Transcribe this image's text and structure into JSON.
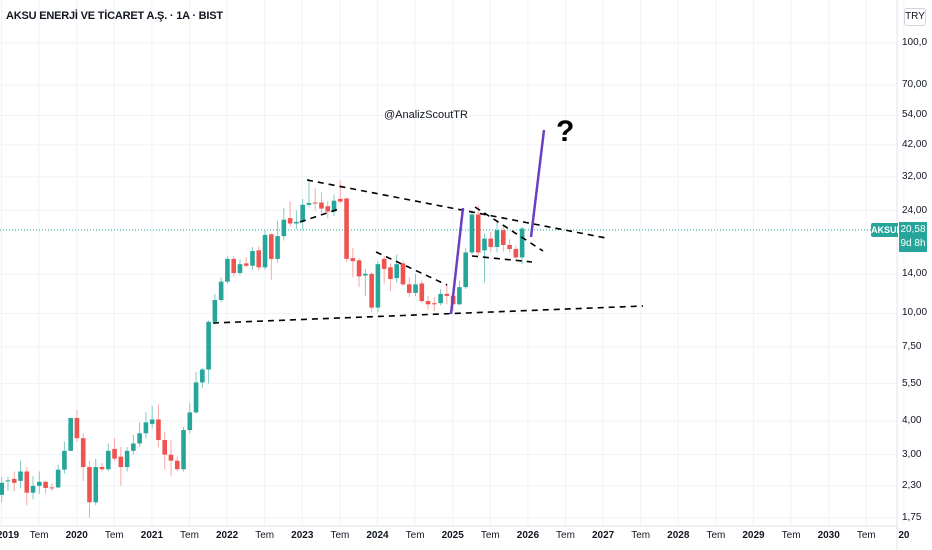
{
  "header": {
    "title": "AKSU ENERJİ VE TİCARET A.Ş. · 1A · BIST",
    "currency": "TRY"
  },
  "watermark": "@AnalizScoutTR",
  "annotation_text": "?",
  "last_price": {
    "symbol": "AKSUE",
    "price": "20,58",
    "countdown": "9d 8h"
  },
  "colors": {
    "up": "#26a69a",
    "down": "#ef5350",
    "trendline": "#000000",
    "projection": "#6a3fc1"
  },
  "chart_data": {
    "type": "candlestick",
    "interval": "1 month",
    "scale": "log",
    "grid": true,
    "y_ticks": [
      "100,0",
      "70,00",
      "54,00",
      "42,00",
      "32,00",
      "24,00",
      "14,00",
      "10,00",
      "7,50",
      "5,50",
      "4,00",
      "3,00",
      "2,30",
      "1,75"
    ],
    "y_tick_values": [
      100,
      70,
      54,
      42,
      32,
      24,
      14,
      10,
      7.5,
      5.5,
      4,
      3,
      2.3,
      1.75
    ],
    "x_ticks": [
      "2019",
      "Tem",
      "2020",
      "Tem",
      "2021",
      "Tem",
      "2022",
      "Tem",
      "2023",
      "Tem",
      "2024",
      "Tem",
      "2025",
      "Tem",
      "2026",
      "Tem",
      "2027",
      "Tem",
      "2028",
      "Tem",
      "2029",
      "Tem",
      "2030",
      "Tem",
      "20"
    ],
    "start": "2019-01",
    "ohlc": [
      [
        2.13,
        2.48,
        2.0,
        2.36
      ],
      [
        2.4,
        2.49,
        2.2,
        2.41
      ],
      [
        2.44,
        2.6,
        2.2,
        2.36
      ],
      [
        2.4,
        2.85,
        2.25,
        2.6
      ],
      [
        2.6,
        2.7,
        1.95,
        2.17
      ],
      [
        2.17,
        2.5,
        2.05,
        2.3
      ],
      [
        2.3,
        2.6,
        2.15,
        2.38
      ],
      [
        2.38,
        2.4,
        2.15,
        2.26
      ],
      [
        2.27,
        2.35,
        2.2,
        2.26
      ],
      [
        2.27,
        2.75,
        2.25,
        2.64
      ],
      [
        2.64,
        3.35,
        2.55,
        3.1
      ],
      [
        3.1,
        4.1,
        3.1,
        4.1
      ],
      [
        4.1,
        4.4,
        3.35,
        3.45
      ],
      [
        3.45,
        3.6,
        2.4,
        2.7
      ],
      [
        2.7,
        2.85,
        1.75,
        2.0
      ],
      [
        2.0,
        2.9,
        1.95,
        2.7
      ],
      [
        2.7,
        2.8,
        2.6,
        2.65
      ],
      [
        2.65,
        3.3,
        2.6,
        3.1
      ],
      [
        3.15,
        3.45,
        2.85,
        2.9
      ],
      [
        2.95,
        3.2,
        2.3,
        2.7
      ],
      [
        2.7,
        3.2,
        2.6,
        3.1
      ],
      [
        3.1,
        3.55,
        3.0,
        3.3
      ],
      [
        3.3,
        3.95,
        3.2,
        3.6
      ],
      [
        3.6,
        4.3,
        3.45,
        3.95
      ],
      [
        3.9,
        4.55,
        3.75,
        4.05
      ],
      [
        4.05,
        4.6,
        3.2,
        3.4
      ],
      [
        3.4,
        3.65,
        2.65,
        3.0
      ],
      [
        3.0,
        3.4,
        2.5,
        2.85
      ],
      [
        2.85,
        2.95,
        2.6,
        2.65
      ],
      [
        2.65,
        3.8,
        2.6,
        3.7
      ],
      [
        3.7,
        4.65,
        3.6,
        4.3
      ],
      [
        4.3,
        6.05,
        4.25,
        5.55
      ],
      [
        5.55,
        6.3,
        5.3,
        6.2
      ],
      [
        6.2,
        9.4,
        5.5,
        9.3
      ],
      [
        9.3,
        11.8,
        9.1,
        11.2
      ],
      [
        11.2,
        13.6,
        11.0,
        13.1
      ],
      [
        13.1,
        16.3,
        12.9,
        15.9
      ],
      [
        15.9,
        16.3,
        13.7,
        14.1
      ],
      [
        14.1,
        15.8,
        13.8,
        15.2
      ],
      [
        15.3,
        16.1,
        14.8,
        15.0
      ],
      [
        15.0,
        17.6,
        14.5,
        17.0
      ],
      [
        17.1,
        17.7,
        14.4,
        14.8
      ],
      [
        14.8,
        20.3,
        14.5,
        19.5
      ],
      [
        19.6,
        19.8,
        13.3,
        15.9
      ],
      [
        15.9,
        22.0,
        15.4,
        19.3
      ],
      [
        19.3,
        24.5,
        18.6,
        22.2
      ],
      [
        22.5,
        26.0,
        21.0,
        21.5
      ],
      [
        21.5,
        24.0,
        20.5,
        21.8
      ],
      [
        21.8,
        26.5,
        20.3,
        25.2
      ],
      [
        25.2,
        31.5,
        24.8,
        25.6
      ],
      [
        25.7,
        29.0,
        24.0,
        25.5
      ],
      [
        25.7,
        28.0,
        23.5,
        24.4
      ],
      [
        24.9,
        26.0,
        22.5,
        23.8
      ],
      [
        23.8,
        27.5,
        22.9,
        26.1
      ],
      [
        26.5,
        31.0,
        25.5,
        25.9
      ],
      [
        26.6,
        26.8,
        15.5,
        15.9
      ],
      [
        16.0,
        17.4,
        13.6,
        15.6
      ],
      [
        15.7,
        16.0,
        12.5,
        13.7
      ],
      [
        13.8,
        14.6,
        11.6,
        14.0
      ],
      [
        14.0,
        14.2,
        10.1,
        10.5
      ],
      [
        10.5,
        15.6,
        10.1,
        15.2
      ],
      [
        15.9,
        16.3,
        12.9,
        14.6
      ],
      [
        14.8,
        15.3,
        12.1,
        13.4
      ],
      [
        13.5,
        16.5,
        13.0,
        15.2
      ],
      [
        15.3,
        15.6,
        12.6,
        12.8
      ],
      [
        12.8,
        13.6,
        11.5,
        11.9
      ],
      [
        11.9,
        14.0,
        11.6,
        12.8
      ],
      [
        12.9,
        13.2,
        10.9,
        11.1
      ],
      [
        11.1,
        11.6,
        10.3,
        10.8
      ],
      [
        10.9,
        11.5,
        10.2,
        10.8
      ],
      [
        10.9,
        12.3,
        10.7,
        11.8
      ],
      [
        11.8,
        12.9,
        10.8,
        11.6
      ],
      [
        11.6,
        12.2,
        10.2,
        10.8
      ],
      [
        10.8,
        13.2,
        10.7,
        12.5
      ],
      [
        12.5,
        17.5,
        12.3,
        16.8
      ],
      [
        16.8,
        24.0,
        16.5,
        23.2
      ],
      [
        23.2,
        25.0,
        16.3,
        16.8
      ],
      [
        17.1,
        19.7,
        13.0,
        18.9
      ],
      [
        18.9,
        20.0,
        16.9,
        17.6
      ],
      [
        17.6,
        22.0,
        16.8,
        20.3
      ],
      [
        20.3,
        21.0,
        16.9,
        17.9
      ],
      [
        17.9,
        18.8,
        16.8,
        17.3
      ],
      [
        17.3,
        17.8,
        15.8,
        16.1
      ],
      [
        16.1,
        20.9,
        15.2,
        20.58
      ]
    ]
  }
}
